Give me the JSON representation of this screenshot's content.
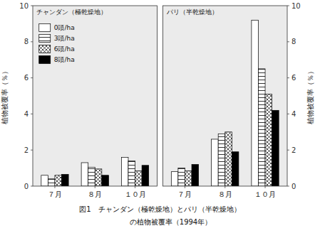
{
  "chart_data": [
    {
      "type": "bar",
      "title": "チャンダン（極乾燥地）",
      "categories": [
        "７月",
        "８月",
        "１０月"
      ],
      "series": [
        {
          "name": "0頭/ha",
          "color": "white",
          "values": [
            0.6,
            1.3,
            1.6
          ]
        },
        {
          "name": "3頭/ha",
          "color": "white",
          "values": [
            0.4,
            1.05,
            1.4
          ]
        },
        {
          "name": "6頭/ha",
          "color": "white",
          "values": [
            0.6,
            0.95,
            0.85
          ]
        },
        {
          "name": "8頭/ha",
          "color": "black",
          "values": [
            0.65,
            0.6,
            1.15
          ]
        }
      ],
      "ylabel": "植物被覆率（％）",
      "ylim": [
        0,
        10
      ],
      "yticks": [
        0,
        2,
        4,
        6,
        8,
        10
      ],
      "legend": "upper left",
      "annotations": [
        "図1　チャンダン（極乾燥地）とパリ（半乾燥地）",
        "　　　の植物被覆率（1994年）"
      ]
    },
    {
      "type": "bar",
      "title": "パリ（半乾燥地）",
      "categories": [
        "７月",
        "８月",
        "１０月"
      ],
      "series": [
        {
          "color": "white",
          "values": [
            0.8,
            2.6,
            9.2
          ]
        },
        {
          "color": "white",
          "values": [
            1.0,
            2.9,
            6.5
          ]
        },
        {
          "color": "white",
          "values": [
            0.85,
            3.0,
            5.1
          ]
        },
        {
          "color": "black",
          "values": [
            1.2,
            1.9,
            4.2
          ]
        }
      ],
      "ylabel": "植物被覆率（％）",
      "ylim": [
        0,
        10
      ],
      "yticks": [
        0,
        2,
        4,
        6,
        8,
        10
      ]
    }
  ]
}
